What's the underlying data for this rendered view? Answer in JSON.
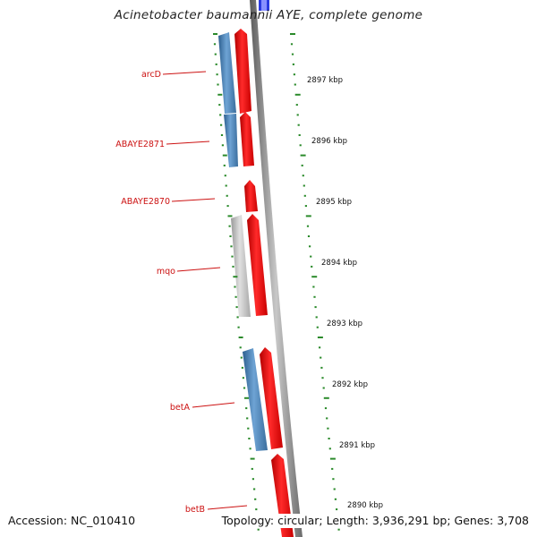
{
  "title": "Acinetobacter baumannii AYE, complete genome",
  "footer": {
    "accession": "Accession: NC_010410",
    "summary": "Topology: circular; Length: 3,936,291 bp; Genes: 3,708"
  },
  "colors": {
    "forward_gene": "#ee1111",
    "reverse_gene": "#4a86be",
    "other_gene": "#c4c4c4",
    "backbone": "#888888",
    "tick": "#2a8a2a",
    "label": "#cc1111",
    "feature_top": "#2233dd"
  },
  "ticks": [
    {
      "label": "2897 kbp"
    },
    {
      "label": "2896 kbp"
    },
    {
      "label": "2895 kbp"
    },
    {
      "label": "2894 kbp"
    },
    {
      "label": "2893 kbp"
    },
    {
      "label": "2892 kbp"
    },
    {
      "label": "2891 kbp"
    },
    {
      "label": "2890 kbp"
    }
  ],
  "genes": [
    {
      "name": "arcD"
    },
    {
      "name": "ABAYE2871"
    },
    {
      "name": "ABAYE2870"
    },
    {
      "name": "mqo"
    },
    {
      "name": "betA"
    },
    {
      "name": "betB"
    }
  ]
}
